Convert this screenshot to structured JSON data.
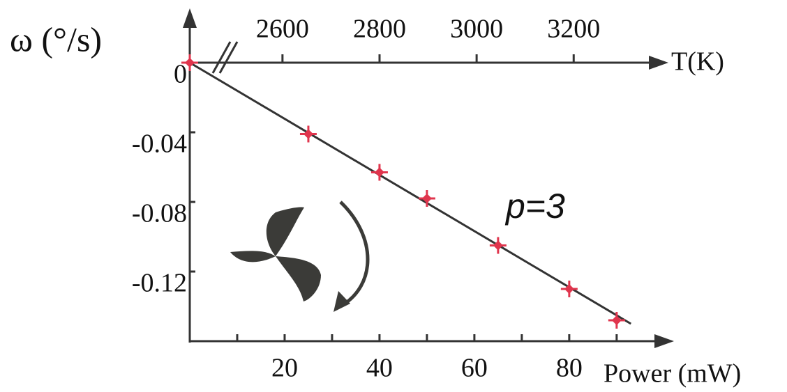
{
  "chart_data": {
    "type": "scatter",
    "y_label": "ω (°/s)",
    "x_label": "Power (mW)",
    "x2_label": "T(K)",
    "annotation": "p=3",
    "x": [
      0,
      25,
      40,
      50,
      65,
      80,
      90
    ],
    "values": [
      0,
      -0.041,
      -0.063,
      -0.078,
      -0.105,
      -0.13,
      -0.148
    ],
    "color": "#e0354d",
    "fit": {
      "x": [
        0,
        93
      ],
      "values": [
        0,
        -0.15
      ],
      "color": "#333333"
    },
    "xlim": [
      0,
      101.2
    ],
    "xticks": [
      20,
      40,
      60,
      80
    ],
    "xminorticks": [
      10,
      30,
      50,
      70,
      90
    ],
    "ylim": [
      -0.16,
      0
    ],
    "yticks": [
      0,
      -0.04,
      -0.08,
      -0.12
    ],
    "x2lim": [
      2409,
      3398
    ],
    "x2ticks": [
      2600,
      2800,
      3000,
      3200
    ]
  }
}
